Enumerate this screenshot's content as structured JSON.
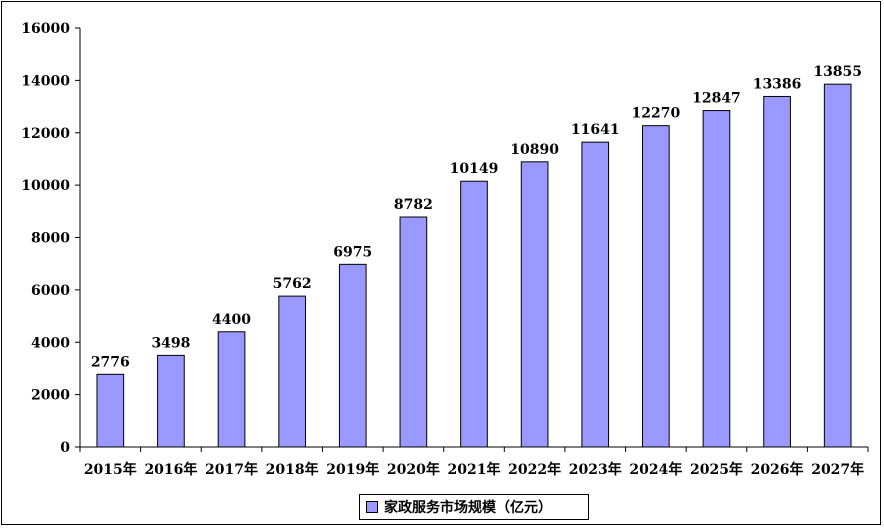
{
  "colors": {
    "bar": "#9999ff",
    "bar_border": "#000000",
    "axis": "#000000"
  },
  "chart_data": {
    "type": "bar",
    "categories": [
      "2015年",
      "2016年",
      "2017年",
      "2018年",
      "2019年",
      "2020年",
      "2021年",
      "2022年",
      "2023年",
      "2024年",
      "2025年",
      "2026年",
      "2027年"
    ],
    "series": [
      {
        "name": "家政服务市场规模（亿元）",
        "values": [
          2776,
          3498,
          4400,
          5762,
          6975,
          8782,
          10149,
          10890,
          11641,
          12270,
          12847,
          13386,
          13855
        ]
      }
    ],
    "data_labels": [
      "2776",
      "3498",
      "4400",
      "5762",
      "6975",
      "8782",
      "10149",
      "10890",
      "11641",
      "12270",
      "12847",
      "13386",
      "13855"
    ],
    "ylim": [
      0,
      16000
    ],
    "yticks": [
      "0",
      "2000",
      "4000",
      "6000",
      "8000",
      "10000",
      "12000",
      "14000",
      "16000"
    ],
    "grid": false,
    "legend": "bottom-center"
  }
}
